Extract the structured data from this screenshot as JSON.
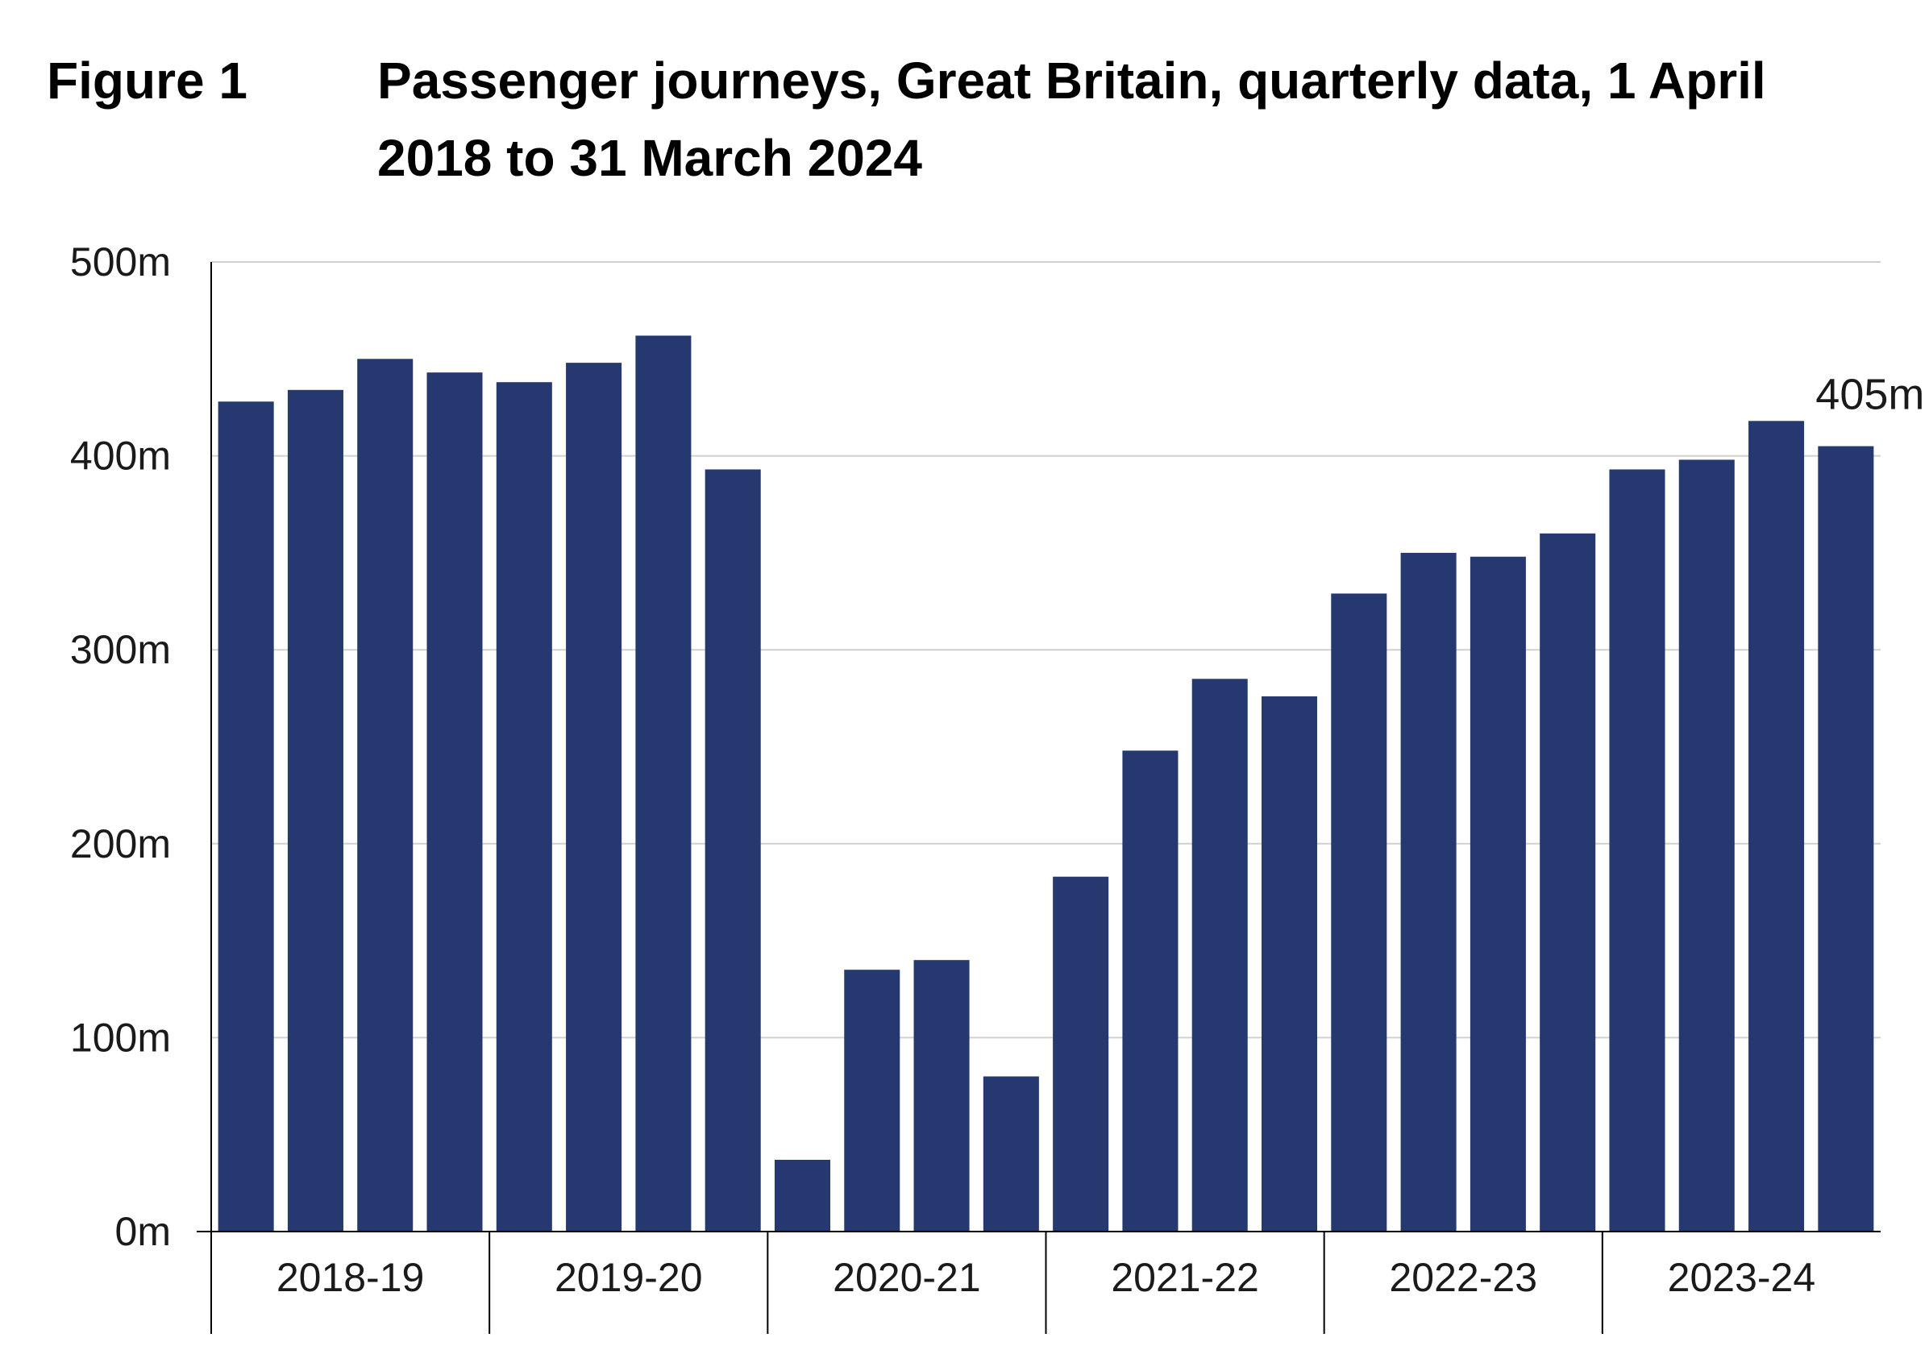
{
  "figure": {
    "label": "Figure 1",
    "title": "Passenger journeys, Great Britain, quarterly data, 1 April 2018 to 31 March 2024"
  },
  "colors": {
    "bar": "#253970",
    "grid": "#d0d0d0",
    "axis": "#000000"
  },
  "chart_data": {
    "type": "bar",
    "title": "Passenger journeys, Great Britain, quarterly data, 1 April 2018 to 31 March 2024",
    "xlabel": "",
    "ylabel": "",
    "ylim": [
      0,
      500
    ],
    "yticks": [
      0,
      100,
      200,
      300,
      400,
      500
    ],
    "ytick_labels": [
      "0m",
      "100m",
      "200m",
      "300m",
      "400m",
      "500m"
    ],
    "grid": true,
    "legend": "none",
    "groups": [
      "2018-19",
      "2019-20",
      "2020-21",
      "2021-22",
      "2022-23",
      "2023-24"
    ],
    "bars_per_group": 4,
    "values": [
      428,
      434,
      450,
      443,
      438,
      448,
      462,
      393,
      37,
      135,
      140,
      80,
      183,
      248,
      285,
      276,
      329,
      350,
      348,
      360,
      393,
      398,
      418,
      405
    ],
    "annotations": [
      {
        "index": 23,
        "text": "405m"
      }
    ]
  }
}
